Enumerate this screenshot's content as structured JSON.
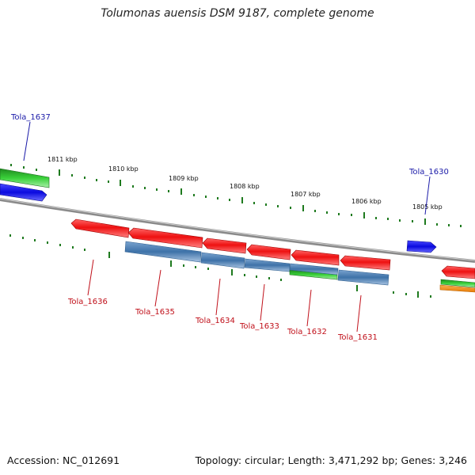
{
  "title": "Tolumonas auensis DSM 9187, complete genome",
  "footer": {
    "accession": "Accession: NC_012691",
    "topology": "Topology: circular; Length: 3,471,292 bp; Genes: 3,246"
  },
  "scale_labels": [
    "1811 kbp",
    "1810 kbp",
    "1809 kbp",
    "1808 kbp",
    "1807 kbp",
    "1806 kbp",
    "1805 kbp"
  ],
  "gene_labels": {
    "tola_1637": "Tola_1637",
    "tola_1630": "Tola_1630",
    "tola_1636": "Tola_1636",
    "tola_1635": "Tola_1635",
    "tola_1634": "Tola_1634",
    "tola_1633": "Tola_1633",
    "tola_1632": "Tola_1632",
    "tola_1631": "Tola_1631"
  },
  "colors": {
    "cds_red": "#ee1111",
    "rna_blue": "#4a7fb5",
    "forward_blue": "#1a1ae0",
    "green": "#3ad13a",
    "orange": "#f08a10",
    "backbone": "#808080",
    "tick_green": "#1e7a1e",
    "label_blue": "#1a1aa8",
    "label_red": "#c0101a"
  }
}
